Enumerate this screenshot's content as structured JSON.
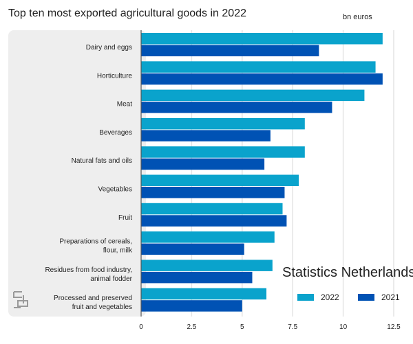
{
  "chart_data": {
    "type": "bar",
    "orientation": "horizontal",
    "title": "Top ten most exported agricultural goods in 2022",
    "unit_label": "bn euros",
    "watermark": "Statistics Netherlands",
    "categories": [
      [
        "Dairy and eggs"
      ],
      [
        "Horticulture"
      ],
      [
        "Meat"
      ],
      [
        "Beverages"
      ],
      [
        "Natural fats and oils"
      ],
      [
        "Vegetables"
      ],
      [
        "Fruit"
      ],
      [
        "Preparations of cereals,",
        "flour, milk"
      ],
      [
        "Residues from food industry,",
        "animal fodder"
      ],
      [
        "Processed and preserved",
        "fruit and vegetables"
      ]
    ],
    "series": [
      {
        "name": "2022",
        "color": "#0aa3cc",
        "values": [
          11.95,
          11.6,
          11.05,
          8.1,
          8.1,
          7.8,
          7.0,
          6.6,
          6.5,
          6.2
        ]
      },
      {
        "name": "2021",
        "color": "#0052b4",
        "values": [
          8.8,
          11.95,
          9.45,
          6.4,
          6.1,
          7.1,
          7.2,
          5.1,
          5.5,
          5.0
        ]
      }
    ],
    "xlim": [
      0,
      12.5
    ],
    "xticks": [
      "0",
      "2.5",
      "5",
      "7.5",
      "10",
      "12.5"
    ],
    "xtick_values": [
      0,
      2.5,
      5,
      7.5,
      10,
      12.5
    ],
    "grid": true,
    "legend_position": "bottom-right"
  }
}
